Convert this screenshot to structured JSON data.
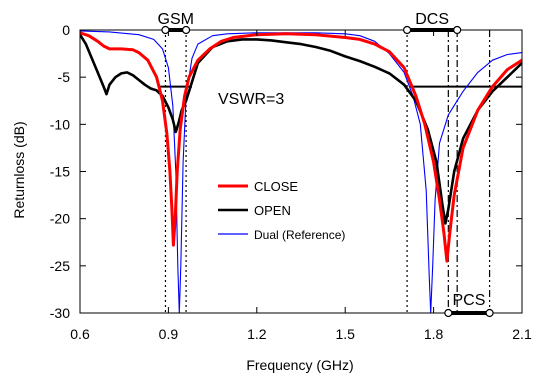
{
  "chart_data": {
    "type": "line",
    "title": "",
    "xlabel": "Frequency (GHz)",
    "ylabel": "Returnloss (dB)",
    "xlim": [
      0.6,
      2.1
    ],
    "ylim": [
      -30,
      0
    ],
    "x_ticks": [
      "0.6",
      "0.9",
      "1.2",
      "1.5",
      "1.8",
      "2.1"
    ],
    "y_ticks": [
      "0",
      "-5",
      "-10",
      "-15",
      "-20",
      "-25",
      "-30"
    ],
    "grid": false,
    "legend_position": "center",
    "series": [
      {
        "name": "CLOSE",
        "color": "#ff0000",
        "points": [
          [
            0.6,
            -0.3
          ],
          [
            0.63,
            -0.6
          ],
          [
            0.66,
            -1.2
          ],
          [
            0.68,
            -1.7
          ],
          [
            0.7,
            -2.0
          ],
          [
            0.74,
            -2.0
          ],
          [
            0.78,
            -2.1
          ],
          [
            0.8,
            -2.4
          ],
          [
            0.83,
            -3.2
          ],
          [
            0.86,
            -5.0
          ],
          [
            0.88,
            -7.5
          ],
          [
            0.895,
            -11.0
          ],
          [
            0.905,
            -15.0
          ],
          [
            0.912,
            -19.0
          ],
          [
            0.917,
            -22.8
          ],
          [
            0.923,
            -20.0
          ],
          [
            0.93,
            -15.0
          ],
          [
            0.94,
            -10.5
          ],
          [
            0.955,
            -7.0
          ],
          [
            0.97,
            -5.0
          ],
          [
            1.0,
            -3.2
          ],
          [
            1.04,
            -2.0
          ],
          [
            1.08,
            -1.2
          ],
          [
            1.12,
            -0.8
          ],
          [
            1.2,
            -0.5
          ],
          [
            1.3,
            -0.4
          ],
          [
            1.4,
            -0.5
          ],
          [
            1.5,
            -0.8
          ],
          [
            1.55,
            -1.0
          ],
          [
            1.6,
            -1.5
          ],
          [
            1.65,
            -2.3
          ],
          [
            1.7,
            -4.0
          ],
          [
            1.74,
            -7.0
          ],
          [
            1.77,
            -10.0
          ],
          [
            1.8,
            -14.0
          ],
          [
            1.82,
            -18.0
          ],
          [
            1.835,
            -21.5
          ],
          [
            1.845,
            -24.5
          ],
          [
            1.855,
            -21.5
          ],
          [
            1.87,
            -17.5
          ],
          [
            1.9,
            -12.5
          ],
          [
            1.95,
            -8.5
          ],
          [
            2.0,
            -6.0
          ],
          [
            2.05,
            -4.2
          ],
          [
            2.1,
            -3.2
          ]
        ]
      },
      {
        "name": "OPEN",
        "color": "#000000",
        "points": [
          [
            0.6,
            -0.5
          ],
          [
            0.62,
            -1.5
          ],
          [
            0.64,
            -3.0
          ],
          [
            0.66,
            -4.5
          ],
          [
            0.68,
            -6.0
          ],
          [
            0.69,
            -6.8
          ],
          [
            0.7,
            -5.8
          ],
          [
            0.72,
            -5.0
          ],
          [
            0.74,
            -4.6
          ],
          [
            0.76,
            -4.5
          ],
          [
            0.78,
            -4.8
          ],
          [
            0.8,
            -5.3
          ],
          [
            0.82,
            -5.8
          ],
          [
            0.84,
            -6.2
          ],
          [
            0.86,
            -6.4
          ],
          [
            0.88,
            -7.0
          ],
          [
            0.9,
            -8.2
          ],
          [
            0.915,
            -9.5
          ],
          [
            0.925,
            -10.8
          ],
          [
            0.935,
            -9.8
          ],
          [
            0.945,
            -8.5
          ],
          [
            0.96,
            -7.5
          ],
          [
            0.98,
            -5.5
          ],
          [
            1.0,
            -3.5
          ],
          [
            1.05,
            -1.8
          ],
          [
            1.1,
            -1.2
          ],
          [
            1.15,
            -1.0
          ],
          [
            1.2,
            -1.0
          ],
          [
            1.25,
            -1.1
          ],
          [
            1.3,
            -1.3
          ],
          [
            1.35,
            -1.5
          ],
          [
            1.4,
            -1.8
          ],
          [
            1.45,
            -2.2
          ],
          [
            1.5,
            -2.8
          ],
          [
            1.55,
            -3.3
          ],
          [
            1.6,
            -3.9
          ],
          [
            1.65,
            -4.6
          ],
          [
            1.7,
            -5.8
          ],
          [
            1.74,
            -7.5
          ],
          [
            1.78,
            -10.5
          ],
          [
            1.81,
            -14.0
          ],
          [
            1.83,
            -18.5
          ],
          [
            1.84,
            -20.5
          ],
          [
            1.85,
            -19.0
          ],
          [
            1.87,
            -15.0
          ],
          [
            1.9,
            -11.5
          ],
          [
            1.95,
            -8.5
          ],
          [
            2.0,
            -6.5
          ],
          [
            2.05,
            -5.0
          ],
          [
            2.1,
            -3.5
          ]
        ]
      },
      {
        "name": "Dual (Reference)",
        "color": "#0000ff",
        "points": [
          [
            0.6,
            -0.1
          ],
          [
            0.7,
            -0.2
          ],
          [
            0.8,
            -0.5
          ],
          [
            0.85,
            -1.0
          ],
          [
            0.88,
            -2.0
          ],
          [
            0.9,
            -4.0
          ],
          [
            0.915,
            -8.0
          ],
          [
            0.925,
            -15.0
          ],
          [
            0.932,
            -25.0
          ],
          [
            0.937,
            -30.0
          ],
          [
            0.942,
            -25.0
          ],
          [
            0.95,
            -14.0
          ],
          [
            0.96,
            -7.0
          ],
          [
            0.98,
            -3.0
          ],
          [
            1.0,
            -1.5
          ],
          [
            1.05,
            -0.6
          ],
          [
            1.1,
            -0.4
          ],
          [
            1.2,
            -0.3
          ],
          [
            1.3,
            -0.3
          ],
          [
            1.4,
            -0.3
          ],
          [
            1.5,
            -0.4
          ],
          [
            1.55,
            -0.6
          ],
          [
            1.6,
            -1.2
          ],
          [
            1.65,
            -2.5
          ],
          [
            1.7,
            -4.5
          ],
          [
            1.73,
            -7.0
          ],
          [
            1.755,
            -10.0
          ],
          [
            1.775,
            -17.0
          ],
          [
            1.785,
            -26.0
          ],
          [
            1.79,
            -30.0
          ],
          [
            1.797,
            -25.0
          ],
          [
            1.805,
            -18.0
          ],
          [
            1.82,
            -12.0
          ],
          [
            1.85,
            -9.0
          ],
          [
            1.9,
            -6.5
          ],
          [
            1.95,
            -4.5
          ],
          [
            2.0,
            -3.2
          ],
          [
            2.05,
            -2.6
          ],
          [
            2.1,
            -2.4
          ]
        ]
      }
    ],
    "vswr_line": {
      "label": "VSWR=3",
      "value": -6.0,
      "ranges": [
        [
          0.87,
          0.98
        ],
        [
          1.72,
          2.1
        ]
      ]
    },
    "bands": [
      {
        "label": "GSM",
        "start": 0.89,
        "end": 0.96,
        "position": "top"
      },
      {
        "label": "DCS",
        "start": 1.71,
        "end": 1.88,
        "position": "top"
      },
      {
        "label": "PCS",
        "start": 1.85,
        "end": 1.99,
        "position": "bottom"
      }
    ],
    "band_edges": {
      "dotted": [
        0.89,
        0.96,
        1.71
      ],
      "dashdot": [
        1.85,
        1.88
      ],
      "dashdotdot": [
        1.99
      ]
    }
  }
}
